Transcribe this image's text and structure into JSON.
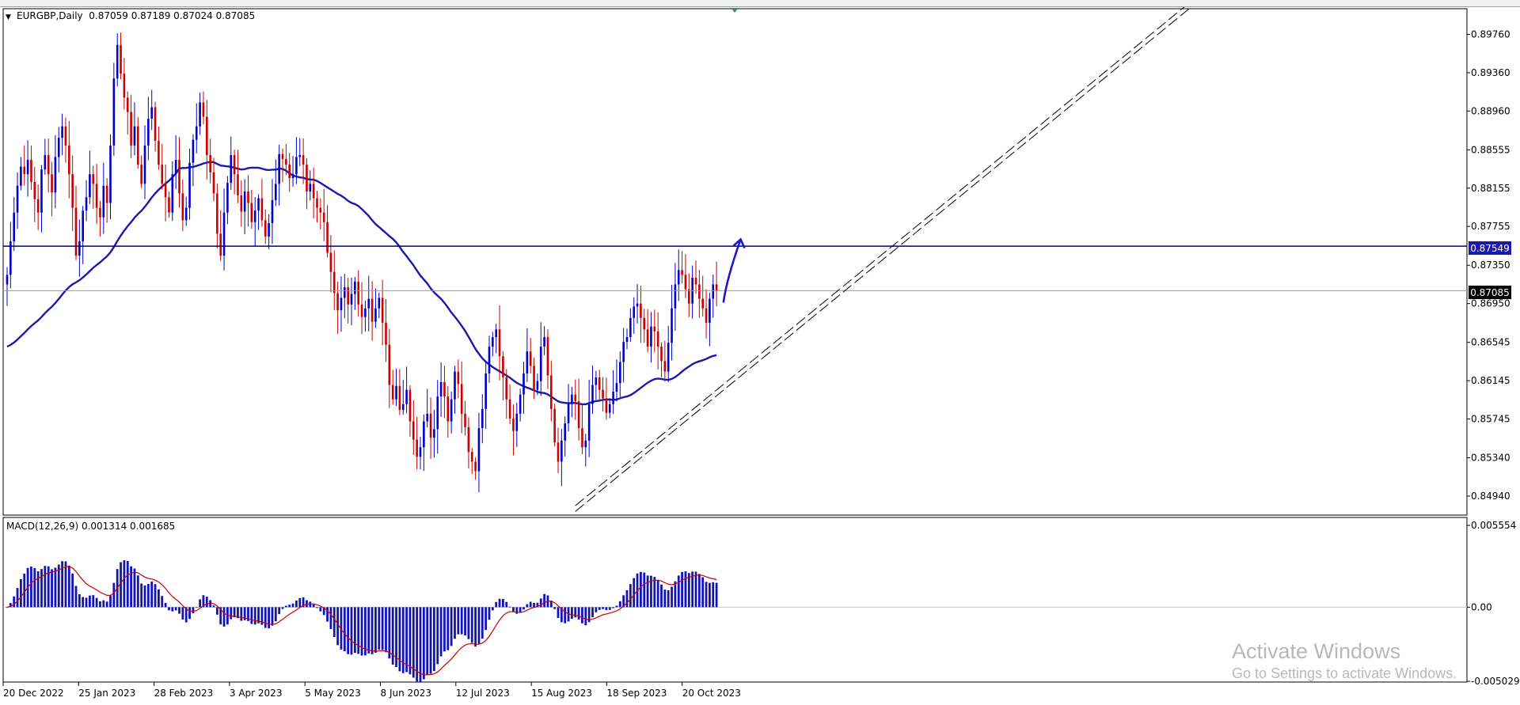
{
  "colors": {
    "background": "#ffffff",
    "frame": "#000000",
    "bull_candle": "#0000cc",
    "bear_candle": "#cc0000",
    "moving_average": "#1a1aa8",
    "level_line": "#000080",
    "current_price_line": "#9a9a9a",
    "trend_channel": "#000000",
    "arrow": "#1a1acc",
    "macd_histogram": "#1414b4",
    "macd_signal": "#cc0000",
    "price_tag_level_bg": "#1a1aa8",
    "price_tag_current_bg": "#000000",
    "watermark": "#b8b8b8"
  },
  "price_panel": {
    "header_arrow": "▼",
    "header_label": "EURGBP,Daily  0.87059 0.87189 0.87024 0.87085",
    "level_tag": "0.87549",
    "current_tag": "0.87085"
  },
  "macd_panel": {
    "header_label": "MACD(12,26,9) 0.001314 0.001685"
  },
  "watermark": {
    "title": "Activate Windows",
    "subtitle": "Go to Settings to activate Windows."
  },
  "chart_data": [
    {
      "type": "candlestick",
      "title": "EURGBP,Daily",
      "ohlc_last": {
        "open": 0.87059,
        "high": 0.87189,
        "low": 0.87024,
        "close": 0.87085
      },
      "ylim": [
        0.8475,
        0.9002
      ],
      "y_ticks": [
        "0.89760",
        "0.89360",
        "0.88960",
        "0.88555",
        "0.88155",
        "0.87755",
        "0.87350",
        "0.86950",
        "0.86545",
        "0.86145",
        "0.85745",
        "0.85340",
        "0.84940"
      ],
      "x_ticks": [
        "20 Dec 2022",
        "25 Jan 2023",
        "28 Feb 2023",
        "3 Apr 2023",
        "5 May 2023",
        "8 Jun 2023",
        "12 Jul 2023",
        "15 Aug 2023",
        "18 Sep 2023",
        "20 Oct 2023"
      ],
      "closes": [
        0.8725,
        0.876,
        0.879,
        0.8818,
        0.8838,
        0.883,
        0.8845,
        0.8822,
        0.8804,
        0.879,
        0.8835,
        0.885,
        0.883,
        0.8811,
        0.8848,
        0.8868,
        0.888,
        0.886,
        0.883,
        0.8795,
        0.8745,
        0.876,
        0.8792,
        0.8806,
        0.883,
        0.882,
        0.8795,
        0.8785,
        0.8818,
        0.88,
        0.886,
        0.893,
        0.8965,
        0.8935,
        0.891,
        0.8895,
        0.886,
        0.888,
        0.884,
        0.882,
        0.886,
        0.8888,
        0.89,
        0.8865,
        0.884,
        0.882,
        0.8806,
        0.879,
        0.883,
        0.8845,
        0.881,
        0.8782,
        0.8795,
        0.8842,
        0.8866,
        0.888,
        0.8905,
        0.889,
        0.885,
        0.8832,
        0.881,
        0.8768,
        0.8745,
        0.879,
        0.8821,
        0.885,
        0.883,
        0.8808,
        0.8791,
        0.8812,
        0.88,
        0.878,
        0.8792,
        0.8805,
        0.8782,
        0.8765,
        0.8779,
        0.8803,
        0.882,
        0.8851,
        0.8846,
        0.884,
        0.8826,
        0.883,
        0.8848,
        0.885,
        0.884,
        0.8812,
        0.882,
        0.8805,
        0.8795,
        0.879,
        0.878,
        0.8748,
        0.8728,
        0.8706,
        0.8688,
        0.8701,
        0.8712,
        0.8694,
        0.8705,
        0.8718,
        0.8694,
        0.8681,
        0.869,
        0.87,
        0.8676,
        0.869,
        0.8701,
        0.8675,
        0.8652,
        0.861,
        0.8595,
        0.8609,
        0.8584,
        0.859,
        0.8605,
        0.8572,
        0.8553,
        0.8535,
        0.8545,
        0.8572,
        0.858,
        0.8555,
        0.8564,
        0.8598,
        0.8613,
        0.8598,
        0.8572,
        0.8595,
        0.8624,
        0.8611,
        0.858,
        0.8566,
        0.854,
        0.853,
        0.852,
        0.8565,
        0.8585,
        0.8622,
        0.865,
        0.866,
        0.8668,
        0.864,
        0.8618,
        0.8595,
        0.8575,
        0.8562,
        0.858,
        0.86,
        0.8622,
        0.8645,
        0.863,
        0.8605,
        0.8614,
        0.865,
        0.866,
        0.862,
        0.8585,
        0.855,
        0.853,
        0.8552,
        0.857,
        0.859,
        0.86,
        0.8593,
        0.8565,
        0.8545,
        0.8552,
        0.859,
        0.861,
        0.8618,
        0.8605,
        0.8596,
        0.8581,
        0.859,
        0.8603,
        0.8612,
        0.8634,
        0.8655,
        0.866,
        0.868,
        0.8692,
        0.8695,
        0.868,
        0.8668,
        0.865,
        0.8671,
        0.8666,
        0.865,
        0.8635,
        0.8624,
        0.8654,
        0.869,
        0.8715,
        0.873,
        0.8725,
        0.871,
        0.8695,
        0.8722,
        0.8715,
        0.87,
        0.869,
        0.8675,
        0.87,
        0.8715,
        0.8708
      ],
      "ma_period": 50,
      "horizontal_level": 0.87549,
      "current_price": 0.87085,
      "trend_channel": {
        "from_bar": 165,
        "from_price": 0.8478,
        "to_bar": 345,
        "to_price": 0.9008,
        "offset": 0.0006
      },
      "arrow": {
        "from_bar": 208,
        "from_price": 0.8696,
        "to_bar": 213,
        "to_price": 0.8762
      }
    },
    {
      "type": "bar",
      "title": "MACD(12,26,9)",
      "values_label": "0.001314 0.001685",
      "ylim": [
        -0.005029,
        0.005554
      ],
      "y_ticks": [
        "0.005554",
        "0.00",
        "-0.005029"
      ],
      "series": [
        "histogram",
        "signal"
      ]
    }
  ]
}
